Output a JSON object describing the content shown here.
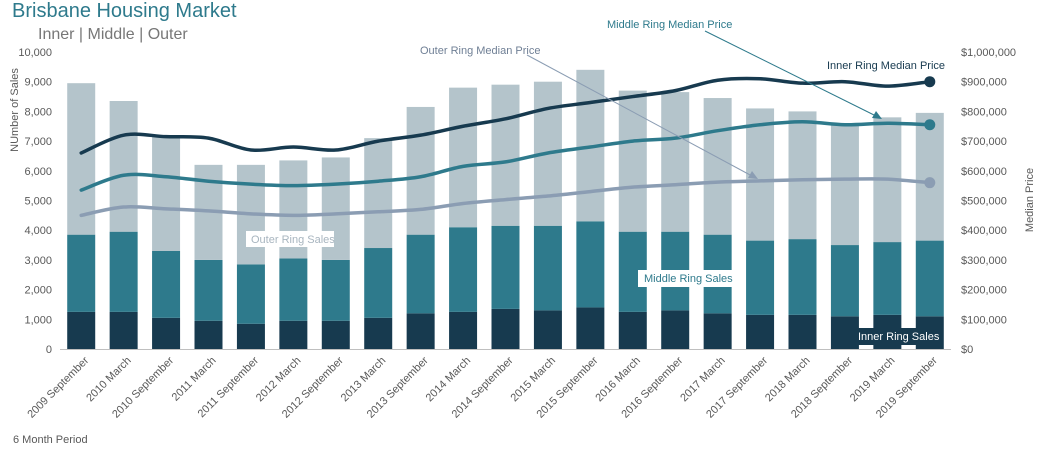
{
  "header": {
    "title": "Brisbane Housing Market",
    "subtitle": "Inner | Middle | Outer"
  },
  "footer": {
    "period_label": "6 Month Period"
  },
  "colors": {
    "inner": "#173a4f",
    "middle": "#2e7a8c",
    "outer": "#b4c4cb",
    "inner_line": "#173a4f",
    "middle_line": "#2e7a8c",
    "outer_line": "#8b9db3"
  },
  "chart_data": {
    "type": "bar",
    "stacked": true,
    "title": "Brisbane Housing Market",
    "ylabel": "NUmber of Sales",
    "y2label": "Median Price",
    "ylim": [
      0,
      10000
    ],
    "y2lim": [
      0,
      1000000
    ],
    "yticks": [
      "0",
      "1,000",
      "2,000",
      "3,000",
      "4,000",
      "5,000",
      "6,000",
      "7,000",
      "8,000",
      "9,000",
      "10,000"
    ],
    "y2ticks": [
      "$0",
      "$100,000",
      "$200,000",
      "$300,000",
      "$400,000",
      "$500,000",
      "$600,000",
      "$700,000",
      "$800,000",
      "$900,000",
      "$1,000,000"
    ],
    "categories": [
      "2009 September",
      "2010 March",
      "2010 September",
      "2011 March",
      "2011 September",
      "2012 March",
      "2012 September",
      "2013 March",
      "2013 September",
      "2014 March",
      "2014 September",
      "2015 March",
      "2015 September",
      "2016 March",
      "2016 September",
      "2017 March",
      "2017 September",
      "2018 March",
      "2018 September",
      "2019 March",
      "2019 September"
    ],
    "bar_series": [
      {
        "name": "Inner Ring Sales",
        "color": "#173a4f",
        "values": [
          1250,
          1250,
          1050,
          950,
          850,
          950,
          950,
          1050,
          1200,
          1250,
          1350,
          1300,
          1400,
          1250,
          1300,
          1200,
          1150,
          1150,
          1100,
          1150,
          1100
        ]
      },
      {
        "name": "Middle Ring Sales",
        "color": "#2e7a8c",
        "values": [
          2600,
          2700,
          2250,
          2050,
          2000,
          2100,
          2050,
          2350,
          2650,
          2850,
          2800,
          2850,
          2900,
          2700,
          2650,
          2650,
          2500,
          2550,
          2400,
          2450,
          2550
        ]
      },
      {
        "name": "Outer Ring Sales",
        "color": "#b4c4cb",
        "values": [
          5100,
          4400,
          3850,
          3200,
          3350,
          3300,
          3450,
          3700,
          4300,
          4700,
          4750,
          4850,
          5100,
          4750,
          4700,
          4600,
          4450,
          4300,
          4100,
          4200,
          4300
        ]
      }
    ],
    "line_series": [
      {
        "name": "Inner Ring Median Price",
        "color": "#173a4f",
        "values": [
          660000,
          720000,
          715000,
          710000,
          670000,
          680000,
          670000,
          700000,
          720000,
          750000,
          775000,
          810000,
          830000,
          850000,
          870000,
          905000,
          910000,
          895000,
          900000,
          885000,
          900000
        ]
      },
      {
        "name": "Middle Ring Median Price",
        "color": "#2e7a8c",
        "values": [
          535000,
          585000,
          580000,
          565000,
          555000,
          550000,
          555000,
          565000,
          580000,
          615000,
          630000,
          660000,
          680000,
          700000,
          710000,
          735000,
          755000,
          765000,
          755000,
          760000,
          755000
        ]
      },
      {
        "name": "Outer Ring Median Price",
        "color": "#8b9db3",
        "values": [
          450000,
          478000,
          472000,
          465000,
          455000,
          450000,
          455000,
          462000,
          470000,
          490000,
          503000,
          515000,
          530000,
          545000,
          553000,
          562000,
          566000,
          570000,
          572000,
          572000,
          560000
        ]
      }
    ],
    "annotations": {
      "outer_sales_label": "Outer Ring Sales",
      "middle_sales_label": "Middle Ring Sales",
      "inner_sales_label": "Inner Ring Sales",
      "outer_price_label": "Outer Ring Median Price",
      "middle_price_label": "Middle Ring Median Price",
      "inner_price_label": "Inner Ring Median Price"
    },
    "xlabel": "6 Month Period",
    "grid": false,
    "legend": "none"
  }
}
